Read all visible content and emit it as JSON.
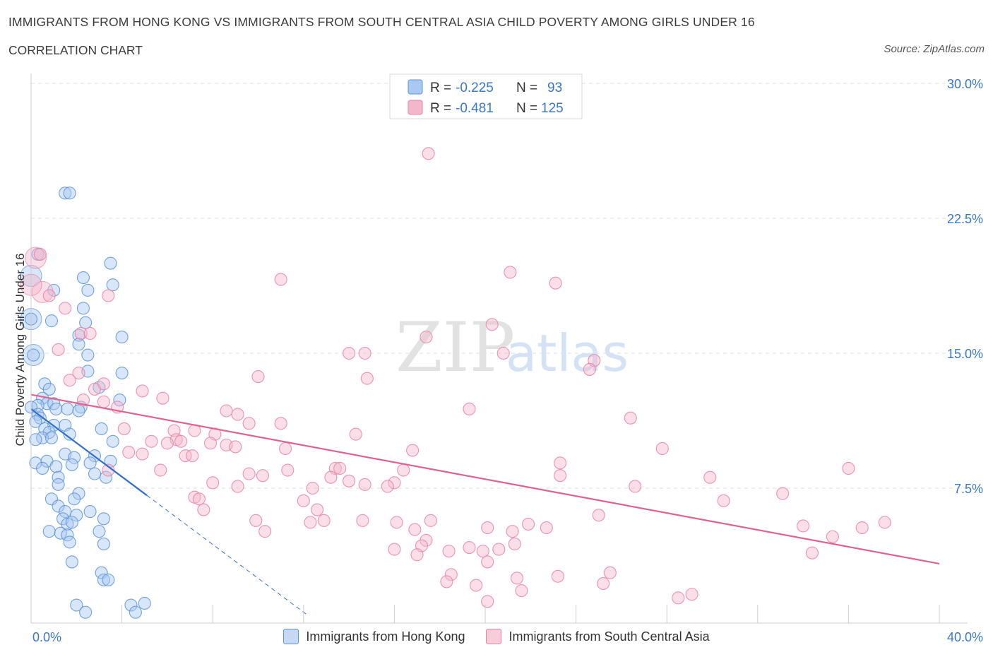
{
  "header": {
    "title": "IMMIGRANTS FROM HONG KONG VS IMMIGRANTS FROM SOUTH CENTRAL ASIA CHILD POVERTY AMONG GIRLS UNDER 16",
    "subtitle": "CORRELATION CHART",
    "source": "Source: ZipAtlas.com"
  },
  "watermark": {
    "part1": "ZIP",
    "part2": "atlas"
  },
  "colors": {
    "blue_fill": "#a9c8f2",
    "blue_stroke": "#5a93d8",
    "blue_line": "#2f6fd0",
    "pink_fill": "#f4b6cb",
    "pink_stroke": "#e883a6",
    "pink_line": "#e0638f",
    "axis_text": "#3a78c8",
    "grid": "#dddddd"
  },
  "chart_data": {
    "type": "scatter",
    "ylabel": "Child Poverty Among Girls Under 16",
    "xlim": [
      0,
      40
    ],
    "ylim": [
      0,
      30
    ],
    "x_tick_labels": [
      "0.0%",
      "40.0%"
    ],
    "y_ticks": [
      {
        "value": 7.5,
        "label": "7.5%"
      },
      {
        "value": 15,
        "label": "15.0%"
      },
      {
        "value": 22.5,
        "label": "22.5%"
      },
      {
        "value": 30,
        "label": "30.0%"
      }
    ],
    "legend": [
      {
        "r_label": "R =",
        "r": "-0.225",
        "n_label": "N =",
        "n": "93"
      },
      {
        "r_label": "R =",
        "r": "-0.481",
        "n_label": "N =",
        "n": "125"
      }
    ],
    "series": [
      {
        "name": "Immigrants from Hong Kong",
        "trend": {
          "x0": 0,
          "y0": 11.9,
          "x1": 5.1,
          "y1": 7.1,
          "dash_to_x": 12.2
        },
        "points": [
          [
            1.5,
            23.9
          ],
          [
            1.7,
            23.9
          ],
          [
            3.5,
            20.0
          ],
          [
            0.3,
            20.5
          ],
          [
            2.3,
            19.2
          ],
          [
            3.6,
            18.8
          ],
          [
            1.0,
            18.5
          ],
          [
            2.5,
            18.5
          ],
          [
            2.3,
            17.5
          ],
          [
            0.0,
            16.9
          ],
          [
            0.9,
            16.8
          ],
          [
            2.4,
            16.7
          ],
          [
            2.1,
            16.0
          ],
          [
            4.0,
            15.9
          ],
          [
            2.1,
            15.5
          ],
          [
            2.5,
            14.9
          ],
          [
            0.1,
            14.9
          ],
          [
            2.5,
            14.0
          ],
          [
            4.0,
            13.9
          ],
          [
            0.6,
            13.3
          ],
          [
            3.0,
            13.1
          ],
          [
            0.8,
            13.0
          ],
          [
            0.5,
            12.5
          ],
          [
            0.7,
            12.2
          ],
          [
            1.0,
            12.2
          ],
          [
            0.3,
            12.1
          ],
          [
            3.9,
            12.4
          ],
          [
            0.0,
            12.0
          ],
          [
            2.2,
            12.0
          ],
          [
            1.1,
            11.9
          ],
          [
            1.6,
            11.9
          ],
          [
            0.3,
            11.6
          ],
          [
            2.1,
            11.8
          ],
          [
            0.4,
            11.4
          ],
          [
            0.2,
            11.2
          ],
          [
            1.0,
            11.0
          ],
          [
            1.5,
            11.0
          ],
          [
            0.6,
            10.8
          ],
          [
            3.1,
            10.8
          ],
          [
            0.8,
            10.6
          ],
          [
            1.7,
            10.5
          ],
          [
            0.5,
            10.3
          ],
          [
            0.9,
            10.3
          ],
          [
            3.6,
            10.1
          ],
          [
            0.2,
            10.2
          ],
          [
            1.5,
            9.4
          ],
          [
            1.9,
            9.2
          ],
          [
            2.8,
            9.3
          ],
          [
            0.2,
            8.9
          ],
          [
            0.7,
            9.0
          ],
          [
            1.8,
            8.8
          ],
          [
            1.1,
            8.7
          ],
          [
            2.6,
            8.9
          ],
          [
            0.5,
            8.6
          ],
          [
            3.5,
            9.0
          ],
          [
            2.8,
            8.3
          ],
          [
            1.2,
            8.1
          ],
          [
            3.3,
            8.1
          ],
          [
            1.2,
            7.7
          ],
          [
            2.1,
            7.2
          ],
          [
            1.9,
            6.9
          ],
          [
            0.9,
            6.9
          ],
          [
            1.2,
            6.5
          ],
          [
            1.5,
            6.2
          ],
          [
            2.6,
            6.2
          ],
          [
            2.0,
            6.0
          ],
          [
            1.4,
            5.8
          ],
          [
            3.2,
            5.8
          ],
          [
            1.6,
            5.5
          ],
          [
            1.8,
            5.6
          ],
          [
            0.8,
            5.1
          ],
          [
            1.3,
            5.0
          ],
          [
            3.0,
            5.1
          ],
          [
            1.6,
            4.9
          ],
          [
            1.7,
            4.5
          ],
          [
            3.2,
            4.4
          ],
          [
            1.8,
            3.4
          ],
          [
            3.1,
            2.8
          ],
          [
            3.2,
            2.4
          ],
          [
            3.4,
            2.4
          ],
          [
            2.0,
            1.0
          ],
          [
            2.4,
            0.6
          ],
          [
            4.4,
            1.0
          ],
          [
            4.6,
            0.6
          ],
          [
            5.0,
            1.1
          ]
        ],
        "large_points": [
          [
            0.0,
            16.9
          ],
          [
            0.1,
            14.9
          ],
          [
            0.0,
            19.3
          ]
        ]
      },
      {
        "name": "Immigrants from South Central Asia",
        "trend": {
          "x0": 0,
          "y0": 12.7,
          "x1": 40,
          "y1": 3.3
        },
        "points": [
          [
            17.5,
            26.1
          ],
          [
            0.4,
            20.5
          ],
          [
            21.1,
            19.5
          ],
          [
            11.0,
            19.1
          ],
          [
            23.1,
            18.9
          ],
          [
            3.4,
            18.2
          ],
          [
            0.8,
            18.2
          ],
          [
            1.5,
            17.5
          ],
          [
            20.3,
            16.6
          ],
          [
            2.2,
            16.1
          ],
          [
            2.6,
            16.1
          ],
          [
            17.4,
            15.9
          ],
          [
            1.2,
            15.2
          ],
          [
            14.0,
            15.0
          ],
          [
            14.7,
            15.0
          ],
          [
            20.8,
            15.0
          ],
          [
            24.8,
            14.6
          ],
          [
            2.1,
            13.9
          ],
          [
            24.6,
            14.1
          ],
          [
            10.0,
            13.7
          ],
          [
            14.8,
            13.6
          ],
          [
            1.7,
            13.5
          ],
          [
            3.2,
            13.3
          ],
          [
            2.8,
            13.0
          ],
          [
            4.9,
            12.9
          ],
          [
            5.8,
            12.5
          ],
          [
            3.2,
            12.3
          ],
          [
            2.3,
            12.4
          ],
          [
            19.3,
            11.9
          ],
          [
            3.8,
            12.0
          ],
          [
            8.6,
            11.8
          ],
          [
            9.1,
            11.6
          ],
          [
            11.0,
            11.1
          ],
          [
            26.4,
            11.4
          ],
          [
            9.6,
            11.1
          ],
          [
            4.1,
            10.8
          ],
          [
            6.3,
            10.7
          ],
          [
            7.2,
            10.7
          ],
          [
            8.1,
            10.5
          ],
          [
            14.3,
            10.5
          ],
          [
            6.4,
            10.2
          ],
          [
            5.3,
            10.1
          ],
          [
            6.0,
            10.0
          ],
          [
            7.9,
            10.0
          ],
          [
            6.6,
            10.1
          ],
          [
            8.6,
            9.9
          ],
          [
            9.0,
            9.8
          ],
          [
            11.2,
            9.7
          ],
          [
            4.3,
            9.5
          ],
          [
            4.9,
            9.4
          ],
          [
            6.8,
            9.3
          ],
          [
            7.1,
            9.3
          ],
          [
            16.8,
            9.6
          ],
          [
            27.8,
            9.7
          ],
          [
            23.3,
            8.9
          ],
          [
            13.4,
            8.6
          ],
          [
            5.7,
            8.5
          ],
          [
            11.3,
            8.5
          ],
          [
            13.6,
            8.6
          ],
          [
            16.4,
            8.5
          ],
          [
            26.6,
            7.6
          ],
          [
            29.9,
            8.1
          ],
          [
            36.0,
            8.6
          ],
          [
            3.4,
            8.5
          ],
          [
            9.6,
            8.3
          ],
          [
            10.2,
            8.2
          ],
          [
            13.2,
            8.1
          ],
          [
            14.0,
            7.9
          ],
          [
            16.0,
            7.8
          ],
          [
            23.3,
            8.2
          ],
          [
            8.0,
            7.8
          ],
          [
            9.1,
            7.6
          ],
          [
            14.7,
            7.7
          ],
          [
            15.7,
            7.6
          ],
          [
            12.4,
            7.5
          ],
          [
            7.2,
            7.0
          ],
          [
            7.4,
            6.9
          ],
          [
            12.0,
            6.8
          ],
          [
            30.5,
            6.8
          ],
          [
            33.1,
            7.2
          ],
          [
            7.6,
            6.3
          ],
          [
            12.6,
            6.3
          ],
          [
            25.0,
            6.0
          ],
          [
            9.9,
            5.7
          ],
          [
            12.3,
            5.6
          ],
          [
            12.9,
            5.7
          ],
          [
            14.6,
            5.7
          ],
          [
            16.1,
            5.6
          ],
          [
            17.6,
            5.7
          ],
          [
            21.9,
            5.5
          ],
          [
            37.6,
            5.6
          ],
          [
            36.6,
            5.3
          ],
          [
            20.1,
            5.3
          ],
          [
            34.0,
            5.4
          ],
          [
            10.3,
            5.1
          ],
          [
            16.9,
            5.2
          ],
          [
            21.2,
            5.1
          ],
          [
            22.7,
            5.3
          ],
          [
            35.3,
            4.8
          ],
          [
            17.4,
            4.6
          ],
          [
            17.2,
            4.3
          ],
          [
            19.3,
            4.2
          ],
          [
            21.3,
            4.4
          ],
          [
            16.0,
            4.1
          ],
          [
            18.4,
            4.0
          ],
          [
            19.9,
            4.0
          ],
          [
            20.6,
            4.1
          ],
          [
            17.0,
            3.8
          ],
          [
            20.1,
            3.4
          ],
          [
            34.4,
            3.9
          ],
          [
            18.5,
            2.7
          ],
          [
            25.5,
            2.8
          ],
          [
            19.6,
            2.1
          ],
          [
            21.4,
            2.5
          ],
          [
            23.2,
            2.6
          ],
          [
            25.2,
            2.2
          ],
          [
            18.3,
            2.3
          ],
          [
            20.1,
            1.2
          ],
          [
            28.5,
            1.4
          ],
          [
            29.1,
            1.6
          ],
          [
            21.6,
            1.8
          ]
        ],
        "large_points": [
          [
            0.2,
            20.3
          ],
          [
            0.5,
            18.4
          ],
          [
            0.0,
            18.8
          ]
        ]
      }
    ]
  },
  "bottom_legend": {
    "items": [
      "Immigrants from Hong Kong",
      "Immigrants from South Central Asia"
    ]
  }
}
